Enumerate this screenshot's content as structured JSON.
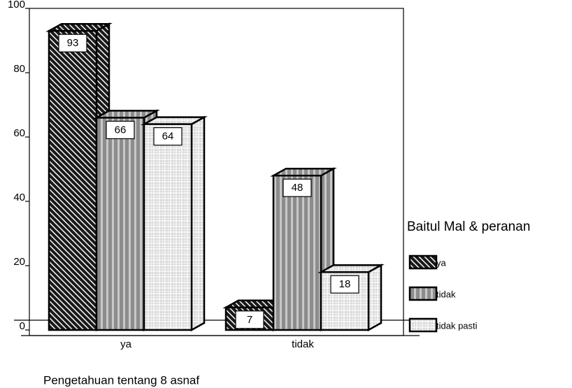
{
  "chart_data": {
    "type": "bar3d",
    "categories": [
      "ya",
      "tidak"
    ],
    "series": [
      {
        "name": "ya",
        "color": "#1a1a1a",
        "values": [
          93,
          7
        ]
      },
      {
        "name": "tidak",
        "color": "#8c8c8c",
        "values": [
          66,
          48
        ]
      },
      {
        "name": "tidak pasti",
        "color": "#d9d9d9",
        "values": [
          64,
          18
        ]
      }
    ],
    "ylim": [
      0,
      100
    ],
    "yticks": [
      0,
      20,
      40,
      60,
      80,
      100
    ],
    "legend_title": "Baitul Mal & peranan",
    "legend": "right",
    "x_label": "Pengetahuan tentang 8 asnaf"
  }
}
